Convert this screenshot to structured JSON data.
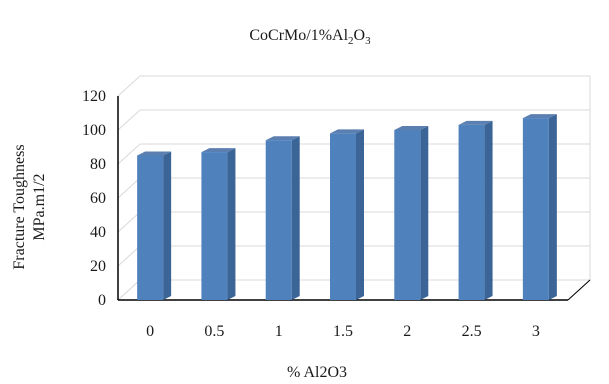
{
  "chart_data": {
    "type": "bar",
    "title": {
      "main": "CoCrMo/1%Al",
      "sub1": "2",
      "mid": "O",
      "sub2": "3"
    },
    "xlabel": "% Al2O3",
    "ylabel_lines": [
      "Fracture Toughness",
      "MPa.m1/2"
    ],
    "categories": [
      "0",
      "0.5",
      "1",
      "1.5",
      "2",
      "2.5",
      "3"
    ],
    "values": [
      85,
      87,
      94,
      98,
      100,
      103,
      107
    ],
    "ylim": [
      0,
      120
    ],
    "yticks": [
      "0",
      "20",
      "40",
      "60",
      "80",
      "100",
      "120"
    ],
    "grid": true,
    "legend": "none",
    "style": "3d-column",
    "colors": {
      "bar_front": "#4f81bd",
      "bar_side": "#3b6596",
      "bar_top": "#5b7fb0",
      "grid": "#d9d9d9",
      "axis": "#000000"
    }
  }
}
